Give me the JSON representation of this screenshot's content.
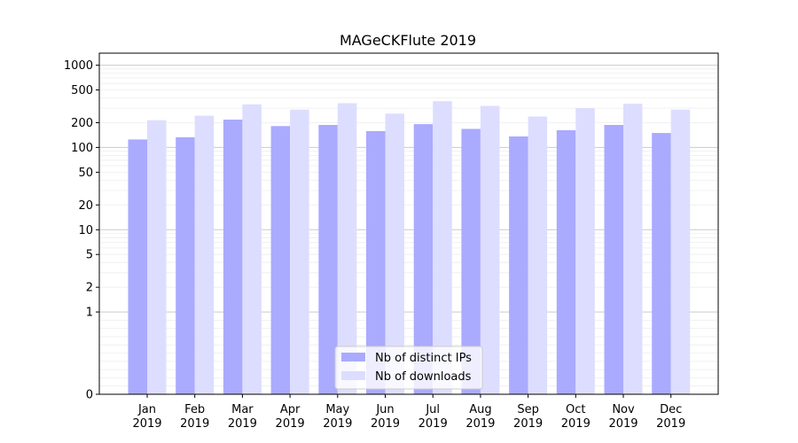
{
  "chart_data": {
    "type": "bar",
    "title": "MAGeCKFlute 2019",
    "xlabel": "",
    "ylabel": "",
    "yscale": "symlog",
    "ylim": [
      0,
      1400
    ],
    "y_ticks": [
      0,
      1,
      2,
      5,
      10,
      20,
      50,
      100,
      200,
      500,
      1000
    ],
    "y_tick_labels": [
      "0",
      "1",
      "2",
      "5",
      "10",
      "20",
      "50",
      "100",
      "200",
      "500",
      "1000"
    ],
    "categories": [
      {
        "month": "Jan",
        "year": "2019"
      },
      {
        "month": "Feb",
        "year": "2019"
      },
      {
        "month": "Mar",
        "year": "2019"
      },
      {
        "month": "Apr",
        "year": "2019"
      },
      {
        "month": "May",
        "year": "2019"
      },
      {
        "month": "Jun",
        "year": "2019"
      },
      {
        "month": "Jul",
        "year": "2019"
      },
      {
        "month": "Aug",
        "year": "2019"
      },
      {
        "month": "Sep",
        "year": "2019"
      },
      {
        "month": "Oct",
        "year": "2019"
      },
      {
        "month": "Nov",
        "year": "2019"
      },
      {
        "month": "Dec",
        "year": "2019"
      }
    ],
    "series": [
      {
        "name": "Nb of distinct IPs",
        "color": "#aaaaff",
        "values": [
          125,
          133,
          218,
          182,
          188,
          158,
          192,
          168,
          136,
          162,
          188,
          150
        ]
      },
      {
        "name": "Nb of downloads",
        "color": "#ddddff",
        "values": [
          214,
          243,
          334,
          288,
          345,
          258,
          365,
          320,
          238,
          300,
          340,
          288
        ]
      }
    ],
    "grid": {
      "major": true,
      "minor": true
    },
    "legend": "bottom-center"
  }
}
